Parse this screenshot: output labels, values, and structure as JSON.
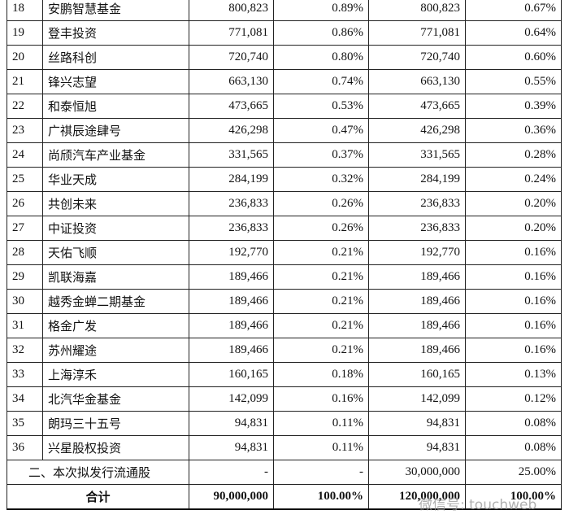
{
  "table": {
    "rows": [
      [
        "18",
        "安鹏智慧基金",
        "800,823",
        "0.89%",
        "800,823",
        "0.67%"
      ],
      [
        "19",
        "登丰投资",
        "771,081",
        "0.86%",
        "771,081",
        "0.64%"
      ],
      [
        "20",
        "丝路科创",
        "720,740",
        "0.80%",
        "720,740",
        "0.60%"
      ],
      [
        "21",
        "锋兴志望",
        "663,130",
        "0.74%",
        "663,130",
        "0.55%"
      ],
      [
        "22",
        "和泰恒旭",
        "473,665",
        "0.53%",
        "473,665",
        "0.39%"
      ],
      [
        "23",
        "广祺辰途肆号",
        "426,298",
        "0.47%",
        "426,298",
        "0.36%"
      ],
      [
        "24",
        "尚颀汽车产业基金",
        "331,565",
        "0.37%",
        "331,565",
        "0.28%"
      ],
      [
        "25",
        "华业天成",
        "284,199",
        "0.32%",
        "284,199",
        "0.24%"
      ],
      [
        "26",
        "共创未来",
        "236,833",
        "0.26%",
        "236,833",
        "0.20%"
      ],
      [
        "27",
        "中证投资",
        "236,833",
        "0.26%",
        "236,833",
        "0.20%"
      ],
      [
        "28",
        "天佑飞顺",
        "192,770",
        "0.21%",
        "192,770",
        "0.16%"
      ],
      [
        "29",
        "凯联海嘉",
        "189,466",
        "0.21%",
        "189,466",
        "0.16%"
      ],
      [
        "30",
        "越秀金蝉二期基金",
        "189,466",
        "0.21%",
        "189,466",
        "0.16%"
      ],
      [
        "31",
        "格金广发",
        "189,466",
        "0.21%",
        "189,466",
        "0.16%"
      ],
      [
        "32",
        "苏州耀途",
        "189,466",
        "0.21%",
        "189,466",
        "0.16%"
      ],
      [
        "33",
        "上海淳禾",
        "160,165",
        "0.18%",
        "160,165",
        "0.13%"
      ],
      [
        "34",
        "北汽华金基金",
        "142,099",
        "0.16%",
        "142,099",
        "0.12%"
      ],
      [
        "35",
        "朗玛三十五号",
        "94,831",
        "0.11%",
        "94,831",
        "0.08%"
      ],
      [
        "36",
        "兴星股权投资",
        "94,831",
        "0.11%",
        "94,831",
        "0.08%"
      ],
      [
        "二、本次拟发行流通股",
        "-",
        "-",
        "30,000,000",
        "25.00%"
      ],
      [
        "合计",
        "90,000,000",
        "100.00%",
        "120,000,000",
        "100.00%"
      ]
    ]
  },
  "watermark": "微信号: touchweb"
}
